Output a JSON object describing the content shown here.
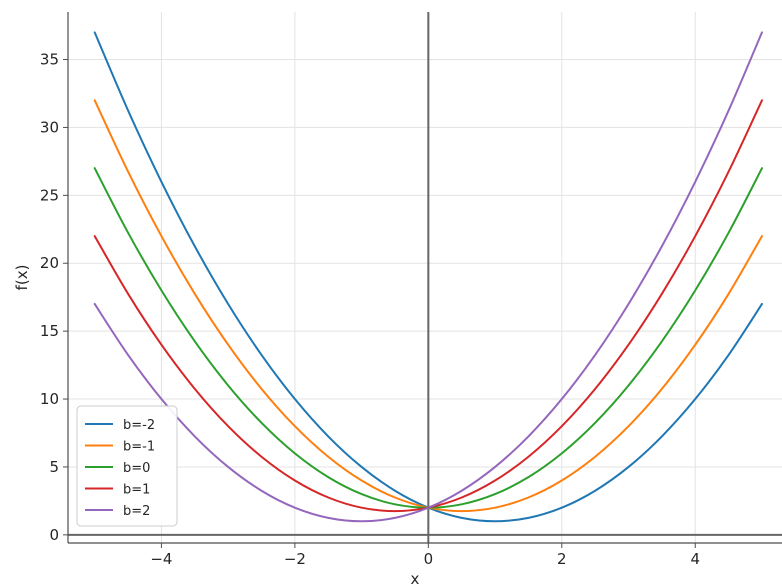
{
  "chart_data": {
    "type": "line",
    "title": "",
    "xlabel": "x",
    "ylabel": "f(x)",
    "xlim": [
      -5.4,
      5.3
    ],
    "ylim": [
      -0.6,
      38.5
    ],
    "x_ticks": [
      -4,
      -2,
      0,
      2,
      4
    ],
    "x_tick_labels": [
      "−4",
      "−2",
      "0",
      "2",
      "4"
    ],
    "y_ticks": [
      0,
      5,
      10,
      15,
      20,
      25,
      30,
      35
    ],
    "y_tick_labels": [
      "0",
      "5",
      "10",
      "15",
      "20",
      "25",
      "30",
      "35"
    ],
    "grid": true,
    "legend_position": "lower-left",
    "x": [
      -5,
      -4.5,
      -4,
      -3.5,
      -3,
      -2.5,
      -2,
      -1.5,
      -1,
      -0.5,
      0,
      0.5,
      1,
      1.5,
      2,
      2.5,
      3,
      3.5,
      4,
      4.5,
      5
    ],
    "series": [
      {
        "name": "b=-2",
        "color": "#1f77b4",
        "values": [
          37,
          31.25,
          26,
          21.25,
          17,
          13.25,
          10,
          7.25,
          5,
          3.25,
          2,
          1.25,
          1,
          1.25,
          2,
          3.25,
          5,
          7.25,
          10,
          13.25,
          17
        ]
      },
      {
        "name": "b=-1",
        "color": "#ff7f0e",
        "values": [
          32,
          26.75,
          22,
          17.75,
          14,
          10.75,
          8,
          5.75,
          4,
          2.75,
          2,
          1.75,
          2,
          2.75,
          4,
          5.75,
          8,
          10.75,
          14,
          17.75,
          22
        ]
      },
      {
        "name": "b=0",
        "color": "#2ca02c",
        "values": [
          27,
          22.25,
          18,
          14.25,
          11,
          8.25,
          6,
          4.25,
          3,
          2.25,
          2,
          2.25,
          3,
          4.25,
          6,
          8.25,
          11,
          14.25,
          18,
          22.25,
          27
        ]
      },
      {
        "name": "b=1",
        "color": "#d62728",
        "values": [
          22,
          17.75,
          14,
          10.75,
          8,
          5.75,
          4,
          2.75,
          2,
          1.75,
          2,
          2.75,
          4,
          5.75,
          8,
          10.75,
          14,
          17.75,
          22,
          26.75,
          32
        ]
      },
      {
        "name": "b=2",
        "color": "#9467bd",
        "values": [
          17,
          13.25,
          10,
          7.25,
          5,
          3.25,
          2,
          1.25,
          1,
          1.25,
          2,
          3.25,
          5,
          7.25,
          10,
          13.25,
          17,
          21.25,
          26,
          31.25,
          37
        ]
      }
    ]
  }
}
